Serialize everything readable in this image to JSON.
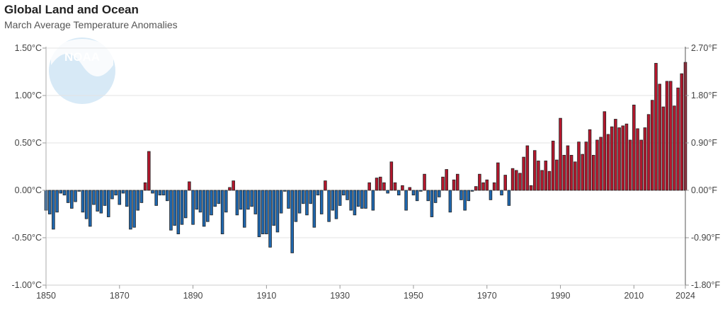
{
  "chart_data": {
    "type": "bar",
    "title": "Global Land and Ocean",
    "subtitle": "March Average Temperature Anomalies",
    "logo_text": "NOAA",
    "xlabel": "",
    "ylabel": "",
    "x_start": 1850,
    "x_end": 2024,
    "ylim": [
      -1.0,
      1.5
    ],
    "grid": true,
    "left_ticks": [
      {
        "value": 1.5,
        "label": "1.50°C"
      },
      {
        "value": 1.0,
        "label": "1.00°C"
      },
      {
        "value": 0.5,
        "label": "0.50°C"
      },
      {
        "value": 0.0,
        "label": "0.00°C"
      },
      {
        "value": -0.5,
        "label": "-0.50°C"
      },
      {
        "value": -1.0,
        "label": "-1.00°C"
      }
    ],
    "right_ticks": [
      {
        "value": 1.5,
        "label": "2.70°F"
      },
      {
        "value": 1.0,
        "label": "1.80°F"
      },
      {
        "value": 0.5,
        "label": "0.90°F"
      },
      {
        "value": 0.0,
        "label": "0.00°F"
      },
      {
        "value": -0.5,
        "label": "-0.90°F"
      },
      {
        "value": -1.0,
        "label": "-1.80°F"
      }
    ],
    "x_ticks": [
      "1850",
      "1870",
      "1890",
      "1910",
      "1930",
      "1950",
      "1970",
      "1990",
      "2010",
      "2024"
    ],
    "colors": {
      "positive": "#b5172d",
      "negative": "#1f68b0",
      "stroke": "#222222",
      "grid": "#e3e3e3"
    },
    "values": [
      -0.21,
      -0.25,
      -0.41,
      -0.23,
      -0.03,
      -0.05,
      -0.13,
      -0.19,
      -0.12,
      -0.01,
      -0.23,
      -0.3,
      -0.38,
      -0.15,
      -0.22,
      -0.24,
      -0.16,
      -0.28,
      -0.09,
      -0.05,
      -0.15,
      -0.03,
      -0.17,
      -0.41,
      -0.39,
      -0.21,
      -0.13,
      0.08,
      0.41,
      -0.03,
      -0.16,
      -0.05,
      -0.05,
      -0.11,
      -0.42,
      -0.37,
      -0.46,
      -0.36,
      -0.29,
      0.09,
      -0.36,
      -0.2,
      -0.23,
      -0.38,
      -0.33,
      -0.26,
      -0.17,
      -0.14,
      -0.46,
      -0.23,
      0.03,
      0.1,
      -0.26,
      -0.2,
      -0.39,
      -0.2,
      -0.17,
      -0.25,
      -0.49,
      -0.46,
      -0.46,
      -0.6,
      -0.37,
      -0.44,
      -0.24,
      -0.01,
      -0.19,
      -0.66,
      -0.33,
      -0.24,
      -0.14,
      -0.26,
      -0.14,
      -0.39,
      -0.05,
      -0.25,
      0.1,
      -0.33,
      -0.21,
      -0.3,
      -0.16,
      -0.05,
      -0.1,
      -0.21,
      -0.26,
      -0.17,
      -0.19,
      -0.19,
      0.08,
      -0.21,
      0.13,
      0.14,
      0.08,
      -0.03,
      0.3,
      0.08,
      -0.05,
      0.05,
      -0.21,
      0.03,
      -0.05,
      -0.11,
      -0.01,
      0.17,
      -0.11,
      -0.28,
      -0.13,
      -0.07,
      0.14,
      0.22,
      -0.23,
      0.11,
      0.17,
      -0.1,
      -0.21,
      -0.11,
      -0.01,
      0.04,
      0.17,
      0.08,
      0.11,
      -0.1,
      0.08,
      0.29,
      -0.05,
      0.16,
      -0.16,
      0.23,
      0.21,
      0.18,
      0.35,
      0.47,
      0.05,
      0.42,
      0.31,
      0.21,
      0.31,
      0.2,
      0.52,
      0.32,
      0.76,
      0.37,
      0.47,
      0.37,
      0.3,
      0.51,
      0.38,
      0.51,
      0.64,
      0.37,
      0.53,
      0.56,
      0.83,
      0.59,
      0.67,
      0.75,
      0.66,
      0.68,
      0.7,
      0.53,
      0.9,
      0.65,
      0.53,
      0.66,
      0.8,
      0.95,
      1.34,
      1.12,
      0.88,
      1.15,
      1.15,
      0.89,
      1.08,
      1.23,
      1.35
    ]
  }
}
